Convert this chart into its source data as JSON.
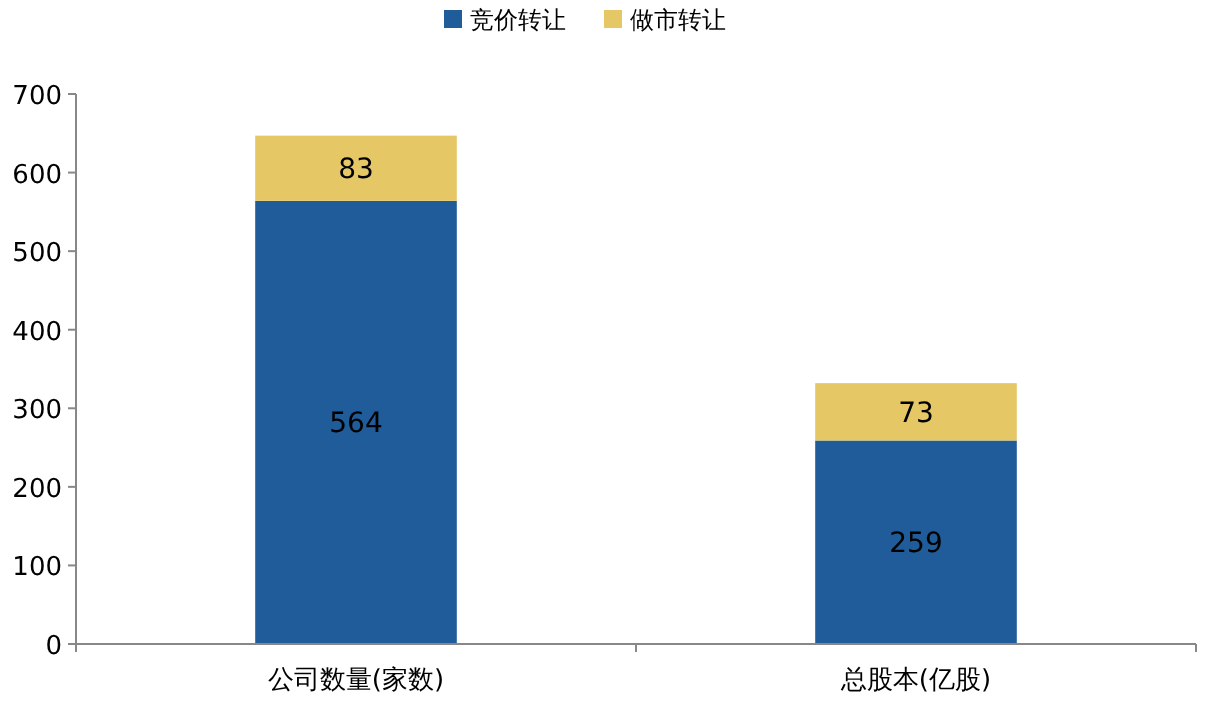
{
  "chart_data": {
    "type": "bar",
    "stacked": true,
    "categories": [
      "公司数量(家数)",
      "总股本(亿股)"
    ],
    "series": [
      {
        "name": "竞价转让",
        "color": "#1f5c99",
        "values": [
          564,
          259
        ]
      },
      {
        "name": "做市转让",
        "color": "#e6c766",
        "values": [
          83,
          73
        ]
      }
    ],
    "ylim": [
      0,
      700
    ],
    "yticks": [
      0,
      100,
      200,
      300,
      400,
      500,
      600,
      700
    ],
    "data_labels": true,
    "legend": "top"
  }
}
